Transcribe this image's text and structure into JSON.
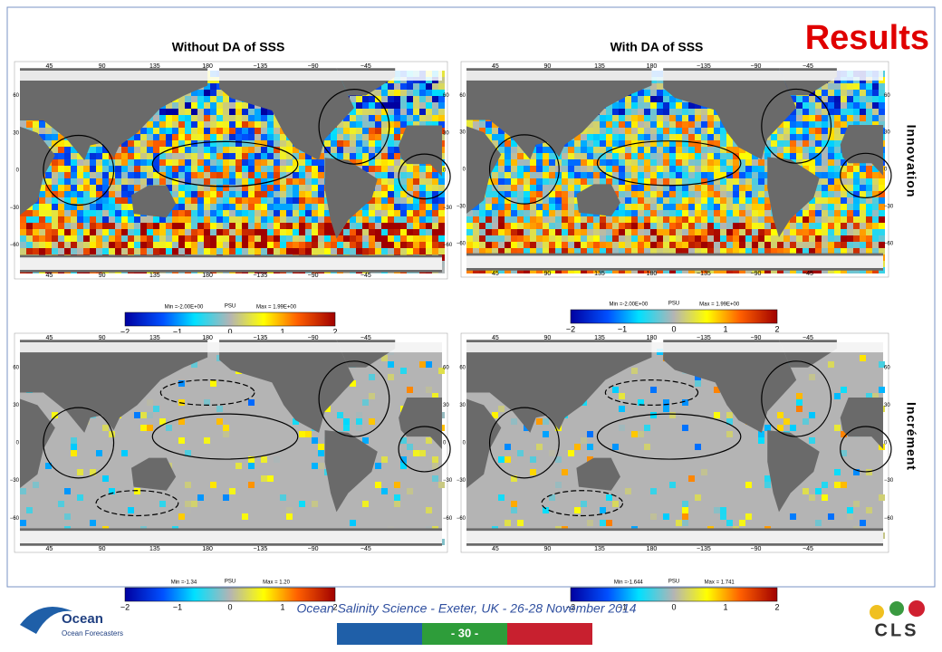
{
  "title": "Results",
  "column_titles": [
    "Without DA of SSS",
    "With DA of SSS"
  ],
  "row_labels": [
    "Innovation",
    "Incrément"
  ],
  "lon_labels": [
    "45",
    "90",
    "135",
    "180",
    "−135",
    "−90",
    "−45"
  ],
  "lat_labels": [
    "60",
    "30",
    "0",
    "−30",
    "−60"
  ],
  "colorbars": [
    {
      "min": "Min =-2.00E+00",
      "unit": "PSU",
      "max": "Max = 1.99E+00",
      "ticks": [
        "−2",
        "−1",
        "0",
        "1",
        "2"
      ]
    },
    {
      "min": "Min =-2.00E+00",
      "unit": "PSU",
      "max": "Max = 1.99E+00",
      "ticks": [
        "−2",
        "−1",
        "0",
        "1",
        "2"
      ]
    },
    {
      "min": "Min =-1.34",
      "unit": "PSU",
      "max": "Max = 1.20",
      "ticks": [
        "−2",
        "−1",
        "0",
        "1",
        "2"
      ]
    },
    {
      "min": "Min =-1.644",
      "unit": "PSU",
      "max": "Max = 1.741",
      "ticks": [
        "−2",
        "−1",
        "0",
        "1",
        "2"
      ]
    }
  ],
  "footer": {
    "conference": "Ocean Salinity Science - Exeter, UK - 26-28 November 2014",
    "page": "- 30 -"
  },
  "logos": {
    "ocean": "Ocean",
    "ocean_sub": "Ocean Forecasters",
    "cls": "CLS"
  }
}
